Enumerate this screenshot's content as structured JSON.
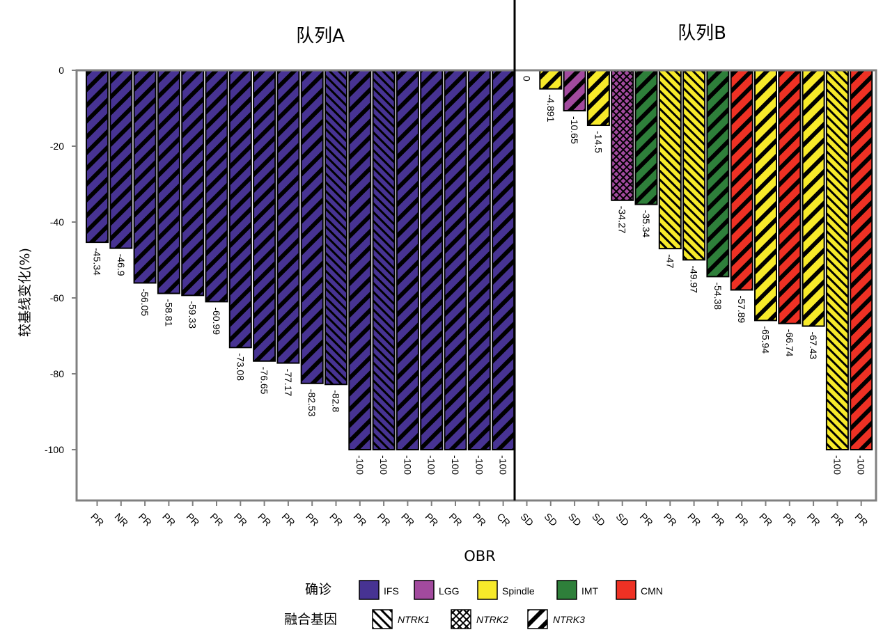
{
  "colors": {
    "IFS": "#473393",
    "LGG": "#a24a9e",
    "Spindle": "#f7ea2a",
    "IMT": "#2e7f3a",
    "CMN": "#ee3124"
  },
  "chart_data": {
    "type": "bar",
    "ylabel": "较基线变化(%)",
    "xlabel": "OBR",
    "ylim": [
      -113,
      0
    ],
    "yticks": [
      "0",
      "-20",
      "-40",
      "-60",
      "-80",
      "-100"
    ],
    "panels": [
      {
        "title": "队列A"
      },
      {
        "title": "队列B"
      }
    ],
    "bars": [
      {
        "panel": 0,
        "value": -45.34,
        "label": "-45.34",
        "response": "PR",
        "diagnosis": "IFS",
        "fusion": "NTRK3"
      },
      {
        "panel": 0,
        "value": -46.9,
        "label": "-46.9",
        "response": "NR",
        "diagnosis": "IFS",
        "fusion": "NTRK3"
      },
      {
        "panel": 0,
        "value": -56.05,
        "label": "-56.05",
        "response": "PR",
        "diagnosis": "IFS",
        "fusion": "NTRK3"
      },
      {
        "panel": 0,
        "value": -58.81,
        "label": "-58.81",
        "response": "PR",
        "diagnosis": "IFS",
        "fusion": "NTRK3"
      },
      {
        "panel": 0,
        "value": -59.33,
        "label": "-59.33",
        "response": "PR",
        "diagnosis": "IFS",
        "fusion": "NTRK3"
      },
      {
        "panel": 0,
        "value": -60.99,
        "label": "-60.99",
        "response": "PR",
        "diagnosis": "IFS",
        "fusion": "NTRK3"
      },
      {
        "panel": 0,
        "value": -73.08,
        "label": "-73.08",
        "response": "PR",
        "diagnosis": "IFS",
        "fusion": "NTRK3"
      },
      {
        "panel": 0,
        "value": -76.65,
        "label": "-76.65",
        "response": "PR",
        "diagnosis": "IFS",
        "fusion": "NTRK3"
      },
      {
        "panel": 0,
        "value": -77.17,
        "label": "-77.17",
        "response": "PR",
        "diagnosis": "IFS",
        "fusion": "NTRK3"
      },
      {
        "panel": 0,
        "value": -82.53,
        "label": "-82.53",
        "response": "PR",
        "diagnosis": "IFS",
        "fusion": "NTRK3"
      },
      {
        "panel": 0,
        "value": -82.8,
        "label": "-82.8",
        "response": "PR",
        "diagnosis": "IFS",
        "fusion": "NTRK1"
      },
      {
        "panel": 0,
        "value": -100,
        "label": "-100",
        "response": "PR",
        "diagnosis": "IFS",
        "fusion": "NTRK3"
      },
      {
        "panel": 0,
        "value": -100,
        "label": "-100",
        "response": "PR",
        "diagnosis": "IFS",
        "fusion": "NTRK1"
      },
      {
        "panel": 0,
        "value": -100,
        "label": "-100",
        "response": "PR",
        "diagnosis": "IFS",
        "fusion": "NTRK3"
      },
      {
        "panel": 0,
        "value": -100,
        "label": "-100",
        "response": "PR",
        "diagnosis": "IFS",
        "fusion": "NTRK3"
      },
      {
        "panel": 0,
        "value": -100,
        "label": "-100",
        "response": "PR",
        "diagnosis": "IFS",
        "fusion": "NTRK3"
      },
      {
        "panel": 0,
        "value": -100,
        "label": "-100",
        "response": "PR",
        "diagnosis": "IFS",
        "fusion": "NTRK3"
      },
      {
        "panel": 0,
        "value": -100,
        "label": "-100",
        "response": "CR",
        "diagnosis": "IFS",
        "fusion": "NTRK3"
      },
      {
        "panel": 1,
        "value": 0,
        "label": "0",
        "response": "SD",
        "diagnosis": "Spindle",
        "fusion": "NTRK3"
      },
      {
        "panel": 1,
        "value": -4.891,
        "label": "-4.891",
        "response": "SD",
        "diagnosis": "Spindle",
        "fusion": "NTRK3"
      },
      {
        "panel": 1,
        "value": -10.65,
        "label": "-10.65",
        "response": "SD",
        "diagnosis": "LGG",
        "fusion": "NTRK3"
      },
      {
        "panel": 1,
        "value": -14.5,
        "label": "-14.5",
        "response": "SD",
        "diagnosis": "Spindle",
        "fusion": "NTRK3"
      },
      {
        "panel": 1,
        "value": -34.27,
        "label": "-34.27",
        "response": "SD",
        "diagnosis": "LGG",
        "fusion": "NTRK2"
      },
      {
        "panel": 1,
        "value": -35.34,
        "label": "-35.34",
        "response": "PR",
        "diagnosis": "IMT",
        "fusion": "NTRK3"
      },
      {
        "panel": 1,
        "value": -47,
        "label": "-47",
        "response": "PR",
        "diagnosis": "Spindle",
        "fusion": "NTRK1"
      },
      {
        "panel": 1,
        "value": -49.97,
        "label": "-49.97",
        "response": "PR",
        "diagnosis": "Spindle",
        "fusion": "NTRK1"
      },
      {
        "panel": 1,
        "value": -54.38,
        "label": "-54.38",
        "response": "PR",
        "diagnosis": "IMT",
        "fusion": "NTRK3"
      },
      {
        "panel": 1,
        "value": -57.89,
        "label": "-57.89",
        "response": "PR",
        "diagnosis": "CMN",
        "fusion": "NTRK3"
      },
      {
        "panel": 1,
        "value": -65.94,
        "label": "-65.94",
        "response": "PR",
        "diagnosis": "Spindle",
        "fusion": "NTRK3"
      },
      {
        "panel": 1,
        "value": -66.74,
        "label": "-66.74",
        "response": "PR",
        "diagnosis": "CMN",
        "fusion": "NTRK3"
      },
      {
        "panel": 1,
        "value": -67.43,
        "label": "-67.43",
        "response": "PR",
        "diagnosis": "Spindle",
        "fusion": "NTRK3"
      },
      {
        "panel": 1,
        "value": -100,
        "label": "-100",
        "response": "PR",
        "diagnosis": "Spindle",
        "fusion": "NTRK1"
      },
      {
        "panel": 1,
        "value": -100,
        "label": "-100",
        "response": "PR",
        "diagnosis": "CMN",
        "fusion": "NTRK3"
      }
    ],
    "legend": {
      "diagnosis_title": "确诊",
      "diagnosis": [
        {
          "key": "IFS",
          "label": "IFS"
        },
        {
          "key": "LGG",
          "label": "LGG"
        },
        {
          "key": "Spindle",
          "label": "Spindle"
        },
        {
          "key": "IMT",
          "label": "IMT"
        },
        {
          "key": "CMN",
          "label": "CMN"
        }
      ],
      "fusion_title": "融合基因",
      "fusion": [
        {
          "key": "NTRK1",
          "label": "NTRK1"
        },
        {
          "key": "NTRK2",
          "label": "NTRK2"
        },
        {
          "key": "NTRK3",
          "label": "NTRK3"
        }
      ]
    }
  }
}
